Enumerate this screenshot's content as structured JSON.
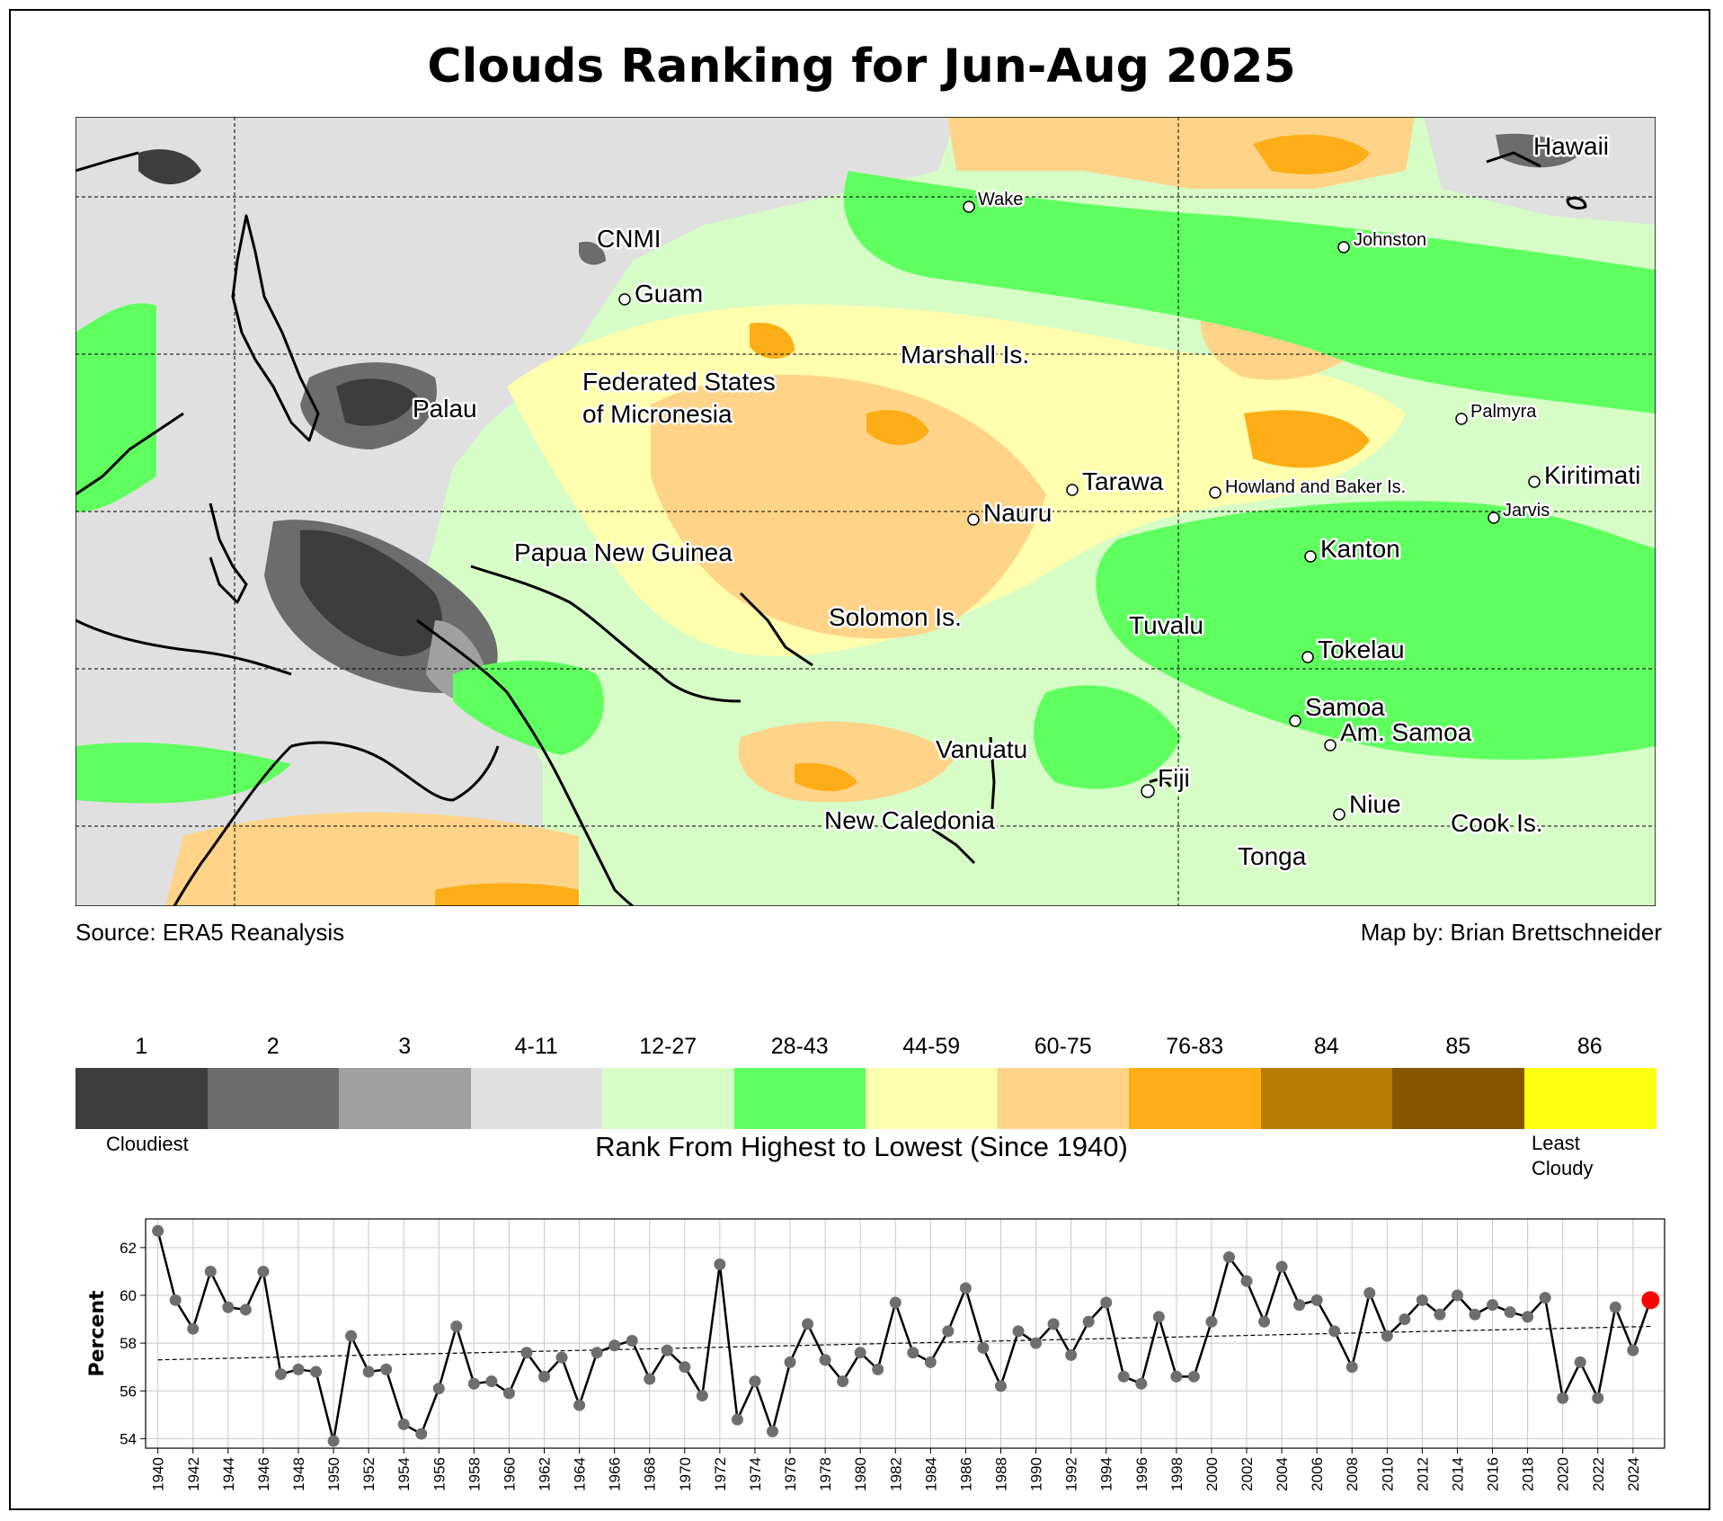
{
  "title": "Clouds Ranking for Jun-Aug 2025",
  "credits": {
    "source": "Source: ERA5 Reanalysis",
    "author": "Map by: Brian Brettschneider"
  },
  "map": {
    "labels": [
      {
        "id": "hawaii",
        "text": "Hawaii",
        "size": "large"
      },
      {
        "id": "wake",
        "text": "Wake",
        "size": "small",
        "dot": true
      },
      {
        "id": "johnston",
        "text": "Johnston",
        "size": "small",
        "dot": true
      },
      {
        "id": "cnmi",
        "text": "CNMI",
        "size": "large"
      },
      {
        "id": "guam",
        "text": "Guam",
        "size": "large",
        "dot": true
      },
      {
        "id": "marshall",
        "text": "Marshall Is.",
        "size": "large"
      },
      {
        "id": "fsm1",
        "text": "Federated States",
        "size": "large"
      },
      {
        "id": "fsm2",
        "text": "of Micronesia",
        "size": "large"
      },
      {
        "id": "palau",
        "text": "Palau",
        "size": "large"
      },
      {
        "id": "palmyra",
        "text": "Palmyra",
        "size": "small",
        "dot": true
      },
      {
        "id": "tarawa",
        "text": "Tarawa",
        "size": "large",
        "dot": true
      },
      {
        "id": "howland",
        "text": "Howland and Baker Is.",
        "size": "small",
        "dot": true
      },
      {
        "id": "kiritimati",
        "text": "Kiritimati",
        "size": "large",
        "dot": true
      },
      {
        "id": "jarvis",
        "text": "Jarvis",
        "size": "small",
        "dot": true
      },
      {
        "id": "nauru",
        "text": "Nauru",
        "size": "large",
        "dot": true
      },
      {
        "id": "png",
        "text": "Papua New Guinea",
        "size": "large"
      },
      {
        "id": "kanton",
        "text": "Kanton",
        "size": "large",
        "dot": true
      },
      {
        "id": "solomon",
        "text": "Solomon Is.",
        "size": "large"
      },
      {
        "id": "tuvalu",
        "text": "Tuvalu",
        "size": "large"
      },
      {
        "id": "tokelau",
        "text": "Tokelau",
        "size": "large",
        "dot": true
      },
      {
        "id": "samoa",
        "text": "Samoa",
        "size": "large",
        "dot": true
      },
      {
        "id": "amsamoa",
        "text": "Am. Samoa",
        "size": "large",
        "dot": true
      },
      {
        "id": "vanuatu",
        "text": "Vanuatu",
        "size": "large"
      },
      {
        "id": "fiji",
        "text": "Fiji",
        "size": "large",
        "dot": true
      },
      {
        "id": "niue",
        "text": "Niue",
        "size": "large",
        "dot": true
      },
      {
        "id": "newcal",
        "text": "New Caledonia",
        "size": "large"
      },
      {
        "id": "cook",
        "text": "Cook Is.",
        "size": "large"
      },
      {
        "id": "tonga",
        "text": "Tonga",
        "size": "large"
      }
    ]
  },
  "colorbar": {
    "title": "Rank From Highest to Lowest (Since 1940)",
    "left_note": "Cloudiest",
    "right_note_line1": "Least",
    "right_note_line2": "Cloudy",
    "bins": [
      {
        "label": "1",
        "color": "#3d3d3d"
      },
      {
        "label": "2",
        "color": "#6c6c6c"
      },
      {
        "label": "3",
        "color": "#a0a0a0"
      },
      {
        "label": "4-11",
        "color": "#e0e0e0"
      },
      {
        "label": "12-27",
        "color": "#d6fdc6"
      },
      {
        "label": "28-43",
        "color": "#5fff5f"
      },
      {
        "label": "44-59",
        "color": "#ffffae"
      },
      {
        "label": "60-75",
        "color": "#ffd488"
      },
      {
        "label": "76-83",
        "color": "#fdae16"
      },
      {
        "label": "84",
        "color": "#b97b00"
      },
      {
        "label": "85",
        "color": "#875700"
      },
      {
        "label": "86",
        "color": "#ffff12"
      }
    ]
  },
  "chart_data": {
    "type": "line",
    "ylabel": "Percent",
    "xlabel": "",
    "ylim": [
      53.6,
      63.2
    ],
    "xlim": [
      1939.3,
      2025.8
    ],
    "yticks": [
      54,
      56,
      58,
      60,
      62
    ],
    "grid": true,
    "x": [
      1940,
      1941,
      1942,
      1943,
      1944,
      1945,
      1946,
      1947,
      1948,
      1949,
      1950,
      1951,
      1952,
      1953,
      1954,
      1955,
      1956,
      1957,
      1958,
      1959,
      1960,
      1961,
      1962,
      1963,
      1964,
      1965,
      1966,
      1967,
      1968,
      1969,
      1970,
      1971,
      1972,
      1973,
      1974,
      1975,
      1976,
      1977,
      1978,
      1979,
      1980,
      1981,
      1982,
      1983,
      1984,
      1985,
      1986,
      1987,
      1988,
      1989,
      1990,
      1991,
      1992,
      1993,
      1994,
      1995,
      1996,
      1997,
      1998,
      1999,
      2000,
      2001,
      2002,
      2003,
      2004,
      2005,
      2006,
      2007,
      2008,
      2009,
      2010,
      2011,
      2012,
      2013,
      2014,
      2015,
      2016,
      2017,
      2018,
      2019,
      2020,
      2021,
      2022,
      2023,
      2024,
      2025
    ],
    "values": [
      62.7,
      59.8,
      58.6,
      61.0,
      59.5,
      59.4,
      61.0,
      56.7,
      56.9,
      56.8,
      53.9,
      58.3,
      56.8,
      56.9,
      54.6,
      54.2,
      56.1,
      58.7,
      56.3,
      56.4,
      55.9,
      57.6,
      56.6,
      57.4,
      55.4,
      57.6,
      57.9,
      58.1,
      56.5,
      57.7,
      57.0,
      55.8,
      61.3,
      54.8,
      56.4,
      54.3,
      57.2,
      58.8,
      57.3,
      56.4,
      57.6,
      56.9,
      59.7,
      57.6,
      57.2,
      58.5,
      60.3,
      57.8,
      56.2,
      58.5,
      58.0,
      58.8,
      57.5,
      58.9,
      59.7,
      56.6,
      56.3,
      59.1,
      56.6,
      56.6,
      58.9,
      61.6,
      60.6,
      58.9,
      61.2,
      59.6,
      59.8,
      58.5,
      57.0,
      60.1,
      58.3,
      59.0,
      59.8,
      59.2,
      60.0,
      59.2,
      59.6,
      59.3,
      59.1,
      59.9,
      55.7,
      57.2,
      55.7,
      59.5,
      57.7,
      59.8
    ],
    "trend": {
      "start": 57.3,
      "end": 58.7
    },
    "highlight_year": 2025,
    "highlight_color": "#ff0000",
    "marker_color": "#6e6e6e",
    "line_color": "#000000"
  }
}
